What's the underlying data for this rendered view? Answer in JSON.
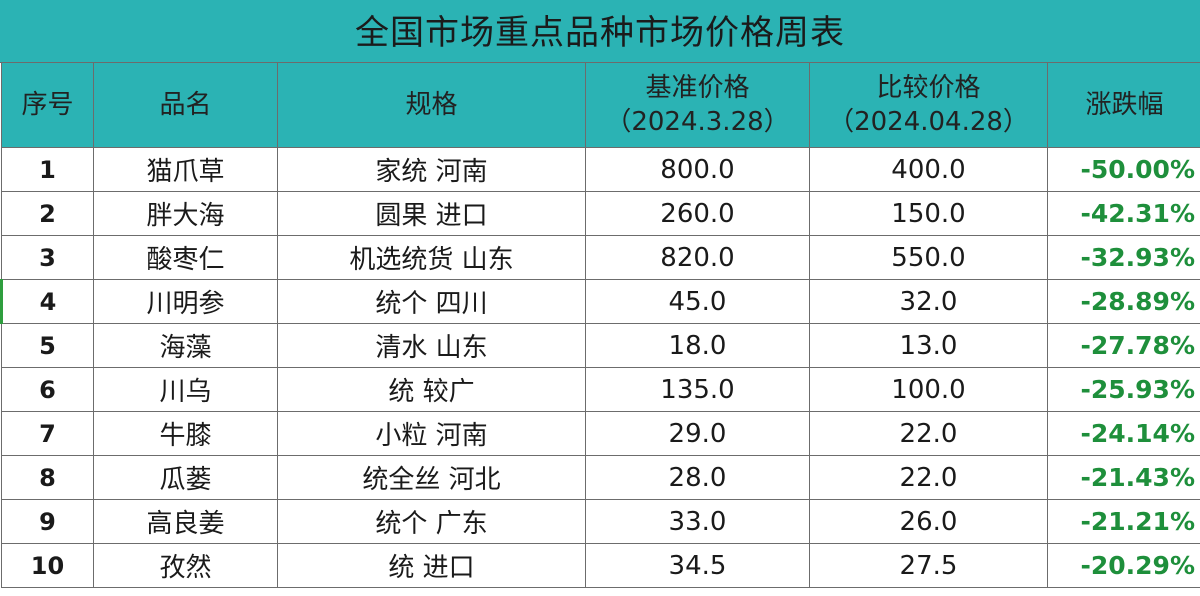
{
  "title": "全国市场重点品种市场价格周表",
  "header": {
    "seq": "序号",
    "name": "品名",
    "spec": "规格",
    "base_label": "基准价格",
    "base_date": "（2024.3.28）",
    "cmp_label": "比较价格",
    "cmp_date": "（2024.04.28）",
    "change": "涨跌幅"
  },
  "rows": [
    {
      "seq": "1",
      "name": "猫爪草",
      "spec": "家统 河南",
      "base": "800.0",
      "cmp": "400.0",
      "change": "-50.00%"
    },
    {
      "seq": "2",
      "name": "胖大海",
      "spec": "圆果 进口",
      "base": "260.0",
      "cmp": "150.0",
      "change": "-42.31%"
    },
    {
      "seq": "3",
      "name": "酸枣仁",
      "spec": "机选统货 山东",
      "base": "820.0",
      "cmp": "550.0",
      "change": "-32.93%"
    },
    {
      "seq": "4",
      "name": "川明参",
      "spec": "统个 四川",
      "base": "45.0",
      "cmp": "32.0",
      "change": "-28.89%"
    },
    {
      "seq": "5",
      "name": "海藻",
      "spec": "清水 山东",
      "base": "18.0",
      "cmp": "13.0",
      "change": "-27.78%"
    },
    {
      "seq": "6",
      "name": "川乌",
      "spec": "统 较广",
      "base": "135.0",
      "cmp": "100.0",
      "change": "-25.93%"
    },
    {
      "seq": "7",
      "name": "牛膝",
      "spec": "小粒 河南",
      "base": "29.0",
      "cmp": "22.0",
      "change": "-24.14%"
    },
    {
      "seq": "8",
      "name": "瓜蒌",
      "spec": "统全丝 河北",
      "base": "28.0",
      "cmp": "22.0",
      "change": "-21.43%"
    },
    {
      "seq": "9",
      "name": "高良姜",
      "spec": "统个 广东",
      "base": "33.0",
      "cmp": "26.0",
      "change": "-21.21%"
    },
    {
      "seq": "10",
      "name": "孜然",
      "spec": "统 进口",
      "base": "34.5",
      "cmp": "27.5",
      "change": "-20.29%"
    }
  ],
  "colors": {
    "header_bg": "#2bb3b4",
    "change_text": "#1e8f3b"
  }
}
